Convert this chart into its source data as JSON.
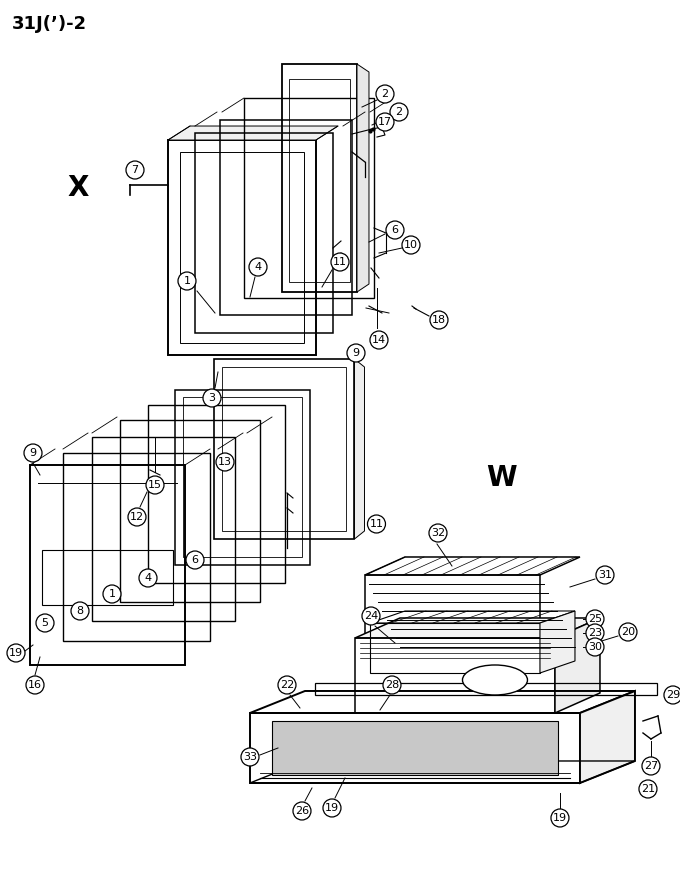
{
  "title": "31J(’)-2",
  "bg_color": "#ffffff",
  "label_X": "X",
  "label_W": "W",
  "title_fontsize": 13,
  "label_fontsize": 20,
  "number_fontsize": 8.0,
  "circle_r": 9
}
